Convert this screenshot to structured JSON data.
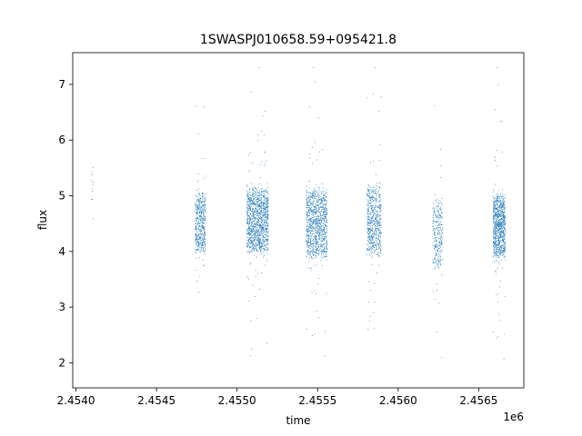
{
  "chart_data": {
    "type": "scatter",
    "title": "1SWASPJ010658.59+095421.8",
    "xlabel": "time",
    "ylabel": "flux",
    "x_offset_label": "1e6",
    "xlim": [
      2453980,
      2456780
    ],
    "ylim": [
      1.55,
      7.57
    ],
    "x_ticks": [
      2454000,
      2454500,
      2455000,
      2455500,
      2456000,
      2456500
    ],
    "x_tick_labels": [
      "2.4540",
      "2.4545",
      "2.4550",
      "2.4555",
      "2.4560",
      "2.4565"
    ],
    "y_ticks": [
      2,
      3,
      4,
      5,
      6,
      7
    ],
    "y_tick_labels": [
      "2",
      "3",
      "4",
      "5",
      "6",
      "7"
    ],
    "grid": false,
    "marker_color": "#1f77b4",
    "clusters": [
      {
        "x_start": 2454095,
        "x_end": 2454110,
        "y_center": 5.05,
        "y_spread": 0.55,
        "count": 12
      },
      {
        "x_start": 2454740,
        "x_end": 2454805,
        "y_center": 4.5,
        "y_spread": 0.48,
        "count": 520
      },
      {
        "x_start": 2455060,
        "x_end": 2455195,
        "y_center": 4.55,
        "y_spread": 0.5,
        "count": 1300
      },
      {
        "x_start": 2455430,
        "x_end": 2455560,
        "y_center": 4.5,
        "y_spread": 0.55,
        "count": 1100
      },
      {
        "x_start": 2455805,
        "x_end": 2455895,
        "y_center": 4.55,
        "y_spread": 0.55,
        "count": 650
      },
      {
        "x_start": 2456215,
        "x_end": 2456275,
        "y_center": 4.3,
        "y_spread": 0.55,
        "count": 300
      },
      {
        "x_start": 2456590,
        "x_end": 2456665,
        "y_center": 4.45,
        "y_spread": 0.5,
        "count": 950
      }
    ]
  }
}
